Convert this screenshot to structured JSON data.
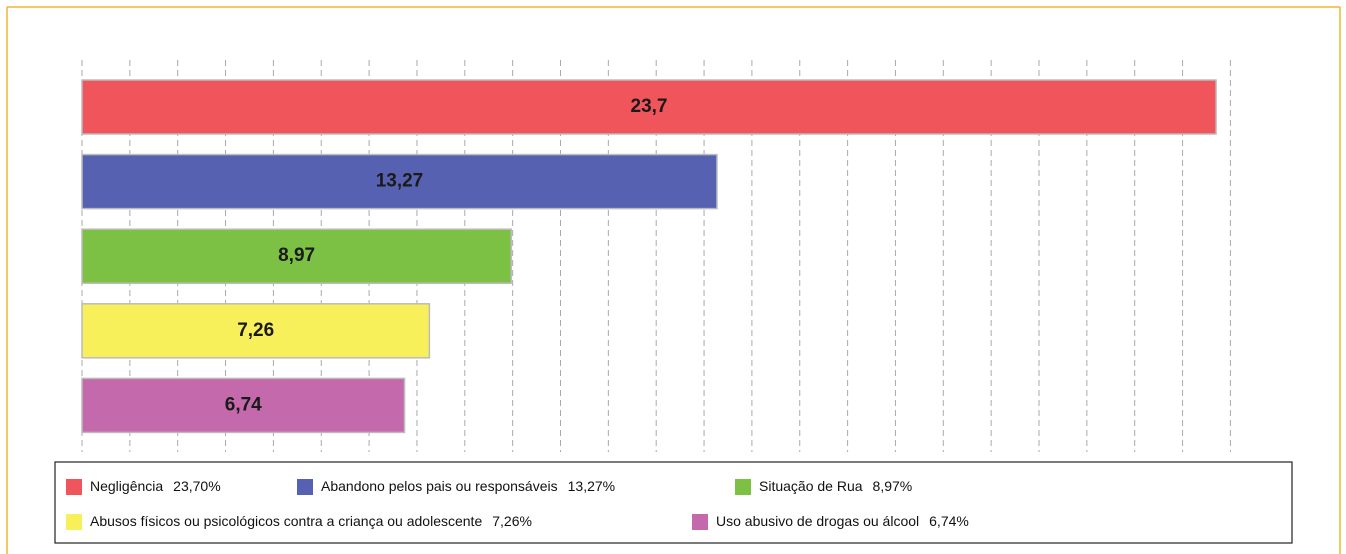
{
  "chart_data": {
    "type": "hbar",
    "categories": [
      "Negligência",
      "Abandono pelos pais ou responsáveis",
      "Situação de Rua",
      "Abusos físicos ou psicológicos contra a criança ou adolescente",
      "Uso abusivo de drogas ou álcool"
    ],
    "values": [
      23.7,
      13.27,
      8.97,
      7.26,
      6.74
    ],
    "value_labels": [
      "23,7",
      "13,27",
      "8,97",
      "7,26",
      "6,74"
    ],
    "legend_values": [
      "23,70%",
      "13,27%",
      "8,97%",
      "7,26%",
      "6,74%"
    ],
    "colors": [
      "#f0555b",
      "#5661b1",
      "#7cc143",
      "#f7f05b",
      "#c46aac"
    ],
    "xlim": [
      0,
      24
    ],
    "xticks": [
      0,
      1,
      2,
      3,
      4,
      5,
      6,
      7,
      8,
      9,
      10,
      11,
      12,
      13,
      14,
      15,
      16,
      17,
      18,
      19,
      20,
      21,
      22,
      23,
      24
    ],
    "grid": true
  }
}
